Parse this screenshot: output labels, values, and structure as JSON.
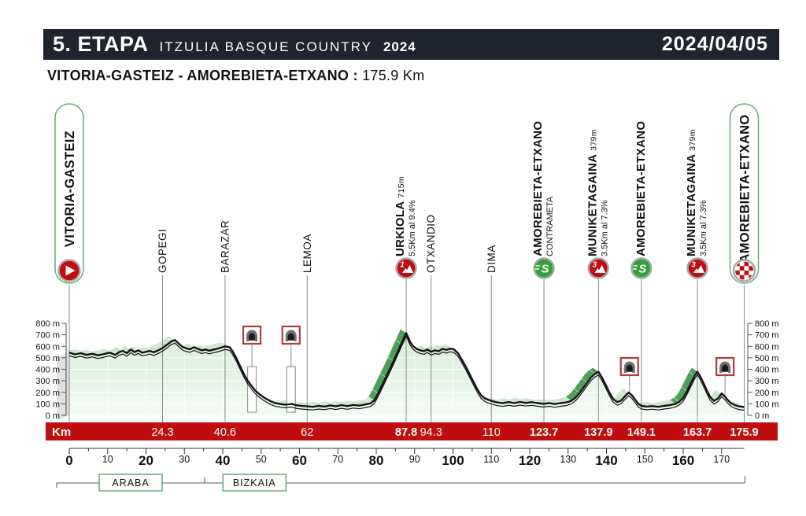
{
  "header": {
    "stage": "5. ETAPA",
    "race": "ITZULIA BASQUE COUNTRY",
    "year": "2024",
    "date": "2024/04/05"
  },
  "subtitle": {
    "route": "VITORIA-GASTEIZ  - AMOREBIETA-ETXANO :",
    "distance": "175.9 Km"
  },
  "colors": {
    "header_bg": "#20242e",
    "red": "#c00d0d",
    "sprint_green": "#2fa337",
    "border_green": "#6aa878",
    "profile_fill_top": "#d7ecd9",
    "profile_fill_bottom": "#f4faf4",
    "ribbon_light": "#cde7cf",
    "climb_dark": "#4d9e57",
    "side_grey": "#e0e0de"
  },
  "chart_data": {
    "type": "area",
    "title": "Stage 5 elevation profile",
    "xlabel": "Km",
    "ylabel": "m",
    "xlim": [
      0,
      175.9
    ],
    "ylim": [
      0,
      800
    ],
    "y_ticks": [
      0,
      100,
      200,
      300,
      400,
      500,
      600,
      700,
      800
    ],
    "y_unit": " m",
    "x_tick_step_minor": 5,
    "x_tick_step_label": 10,
    "x_label_max": 170,
    "km_bar_label": "Km",
    "km_bar": [
      {
        "text": "24.3",
        "km": 24.3,
        "bold": false
      },
      {
        "text": "40.6",
        "km": 40.6,
        "bold": false
      },
      {
        "text": "62",
        "km": 62,
        "bold": false
      },
      {
        "text": "87.8",
        "km": 87.8,
        "bold": true
      },
      {
        "text": "94.3",
        "km": 94.3,
        "bold": false
      },
      {
        "text": "110",
        "km": 110,
        "bold": false
      },
      {
        "text": "123.7",
        "km": 123.7,
        "bold": true
      },
      {
        "text": "137.9",
        "km": 137.9,
        "bold": true
      },
      {
        "text": "149.1",
        "km": 149.1,
        "bold": true
      },
      {
        "text": "163.7",
        "km": 163.7,
        "bold": true
      },
      {
        "text": "175.9",
        "km": 175.9,
        "bold": true
      }
    ],
    "waypoints": [
      {
        "name": "VITORIA-GASTEIZ",
        "km": 0,
        "type": "start"
      },
      {
        "name": "GOPEGI",
        "km": 24.3,
        "type": "town"
      },
      {
        "name": "BARAZAR",
        "km": 40.6,
        "type": "town"
      },
      {
        "name": "LEMOA",
        "km": 62,
        "type": "town"
      },
      {
        "name": "URKIOLA",
        "km": 87.8,
        "type": "climb",
        "category": "1",
        "altitude": "715m",
        "detail": "5.5Km al 9.4%"
      },
      {
        "name": "OTXANDIO",
        "km": 94.3,
        "type": "town"
      },
      {
        "name": "DIMA",
        "km": 110,
        "type": "town"
      },
      {
        "name": "AMOREBIETA-ETXANO",
        "km": 123.7,
        "type": "sprint",
        "detail": "CONTRAMETA"
      },
      {
        "name": "MUNIKETAGAINA",
        "km": 137.9,
        "type": "climb",
        "category": "3",
        "altitude": "379m",
        "detail": "3.5Km al 7.3%"
      },
      {
        "name": "AMOREBIETA-ETXANO",
        "km": 149.1,
        "type": "sprint"
      },
      {
        "name": "MUNIKETAGAINA",
        "km": 163.7,
        "type": "climb",
        "category": "3",
        "altitude": "379m",
        "detail": "3.5Km al 7.3%"
      },
      {
        "name": "AMOREBIETA-ETXANO",
        "km": 175.9,
        "type": "finish"
      }
    ],
    "tunnels": [
      {
        "km": 47.6,
        "rect": true
      },
      {
        "km": 57.8,
        "rect": true
      },
      {
        "km": 146.0,
        "rect": false
      },
      {
        "km": 170.9,
        "rect": false
      }
    ],
    "climb_segments": [
      [
        79,
        87.8
      ],
      [
        130.8,
        137.9
      ],
      [
        158,
        163.7
      ]
    ],
    "regions": [
      {
        "name": "ARABA",
        "from_km": 0,
        "to_km": 35.3
      },
      {
        "name": "BIZKAIA",
        "from_km": 35.3,
        "to_km": 175.9
      }
    ],
    "profile": [
      [
        0,
        545
      ],
      [
        1.5,
        530
      ],
      [
        3,
        540
      ],
      [
        4.5,
        525
      ],
      [
        6,
        535
      ],
      [
        7.5,
        522
      ],
      [
        9,
        532
      ],
      [
        10.5,
        545
      ],
      [
        12,
        525
      ],
      [
        13,
        550
      ],
      [
        14,
        560
      ],
      [
        15,
        540
      ],
      [
        16,
        572
      ],
      [
        17,
        550
      ],
      [
        18,
        565
      ],
      [
        19,
        545
      ],
      [
        20,
        552
      ],
      [
        21,
        560
      ],
      [
        22,
        548
      ],
      [
        23,
        562
      ],
      [
        24.3,
        585
      ],
      [
        25.5,
        615
      ],
      [
        26.5,
        640
      ],
      [
        27.5,
        655
      ],
      [
        28.5,
        625
      ],
      [
        29.5,
        595
      ],
      [
        30.5,
        582
      ],
      [
        31.5,
        575
      ],
      [
        32.5,
        592
      ],
      [
        33.5,
        578
      ],
      [
        34.5,
        565
      ],
      [
        35.5,
        572
      ],
      [
        36.5,
        562
      ],
      [
        37.5,
        570
      ],
      [
        38.5,
        578
      ],
      [
        39.5,
        588
      ],
      [
        40.6,
        600
      ],
      [
        41.8,
        592
      ],
      [
        42.5,
        560
      ],
      [
        43.5,
        500
      ],
      [
        44.5,
        430
      ],
      [
        45.5,
        360
      ],
      [
        46.5,
        300
      ],
      [
        47.5,
        255
      ],
      [
        48.5,
        215
      ],
      [
        49.5,
        185
      ],
      [
        50.5,
        160
      ],
      [
        51.5,
        140
      ],
      [
        52.5,
        122
      ],
      [
        53.5,
        108
      ],
      [
        55,
        98
      ],
      [
        56.5,
        92
      ],
      [
        58,
        100
      ],
      [
        59,
        88
      ],
      [
        60.5,
        82
      ],
      [
        62,
        78
      ],
      [
        63.5,
        74
      ],
      [
        65,
        82
      ],
      [
        66.5,
        76
      ],
      [
        68,
        86
      ],
      [
        69.5,
        78
      ],
      [
        71,
        88
      ],
      [
        72.5,
        80
      ],
      [
        74,
        90
      ],
      [
        75.5,
        84
      ],
      [
        77,
        94
      ],
      [
        78.5,
        104
      ],
      [
        79.5,
        130
      ],
      [
        80.5,
        190
      ],
      [
        81.5,
        260
      ],
      [
        82.5,
        330
      ],
      [
        83.5,
        400
      ],
      [
        84.5,
        470
      ],
      [
        85.5,
        545
      ],
      [
        86.5,
        620
      ],
      [
        87.2,
        670
      ],
      [
        87.8,
        715
      ],
      [
        88.3,
        680
      ],
      [
        88.8,
        640
      ],
      [
        89.5,
        605
      ],
      [
        90.5,
        578
      ],
      [
        91.5,
        565
      ],
      [
        92.5,
        558
      ],
      [
        93.3,
        572
      ],
      [
        94.3,
        552
      ],
      [
        95.3,
        565
      ],
      [
        96.3,
        558
      ],
      [
        97.3,
        578
      ],
      [
        98.3,
        568
      ],
      [
        99.3,
        580
      ],
      [
        100.3,
        572
      ],
      [
        101.3,
        540
      ],
      [
        102.3,
        485
      ],
      [
        103.3,
        425
      ],
      [
        104.3,
        360
      ],
      [
        105.3,
        295
      ],
      [
        106.3,
        230
      ],
      [
        107.3,
        175
      ],
      [
        108.3,
        148
      ],
      [
        109.2,
        135
      ],
      [
        110,
        125
      ],
      [
        111.5,
        112
      ],
      [
        113,
        105
      ],
      [
        114.5,
        115
      ],
      [
        116,
        106
      ],
      [
        117.5,
        116
      ],
      [
        119,
        108
      ],
      [
        120.5,
        114
      ],
      [
        122,
        106
      ],
      [
        123.7,
        100
      ],
      [
        125,
        106
      ],
      [
        126.5,
        98
      ],
      [
        128,
        106
      ],
      [
        129.5,
        112
      ],
      [
        130.8,
        125
      ],
      [
        132,
        155
      ],
      [
        133,
        195
      ],
      [
        134,
        240
      ],
      [
        135,
        285
      ],
      [
        136,
        330
      ],
      [
        137,
        360
      ],
      [
        137.9,
        379
      ],
      [
        138.8,
        330
      ],
      [
        139.8,
        265
      ],
      [
        140.8,
        195
      ],
      [
        141.8,
        140
      ],
      [
        142.8,
        115
      ],
      [
        143.8,
        128
      ],
      [
        144.8,
        165
      ],
      [
        145.8,
        198
      ],
      [
        146.6,
        175
      ],
      [
        147.5,
        135
      ],
      [
        148.3,
        100
      ],
      [
        149.1,
        82
      ],
      [
        150.5,
        76
      ],
      [
        152,
        80
      ],
      [
        153.5,
        74
      ],
      [
        155,
        82
      ],
      [
        156.5,
        88
      ],
      [
        158,
        100
      ],
      [
        159,
        118
      ],
      [
        160,
        150
      ],
      [
        161,
        210
      ],
      [
        162,
        280
      ],
      [
        163,
        345
      ],
      [
        163.7,
        379
      ],
      [
        164.5,
        335
      ],
      [
        165.3,
        280
      ],
      [
        166.2,
        215
      ],
      [
        167,
        160
      ],
      [
        168,
        125
      ],
      [
        169,
        145
      ],
      [
        170,
        190
      ],
      [
        170.8,
        165
      ],
      [
        171.7,
        130
      ],
      [
        172.5,
        105
      ],
      [
        173.5,
        88
      ],
      [
        174.5,
        78
      ],
      [
        175.9,
        72
      ]
    ]
  }
}
